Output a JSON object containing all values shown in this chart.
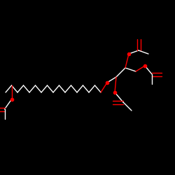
{
  "background_color": "#000000",
  "bond_color": "#ffffff",
  "oxygen_color": "#ff0000",
  "line_width": 1.0,
  "figsize": [
    2.5,
    2.5
  ],
  "dpi": 100
}
